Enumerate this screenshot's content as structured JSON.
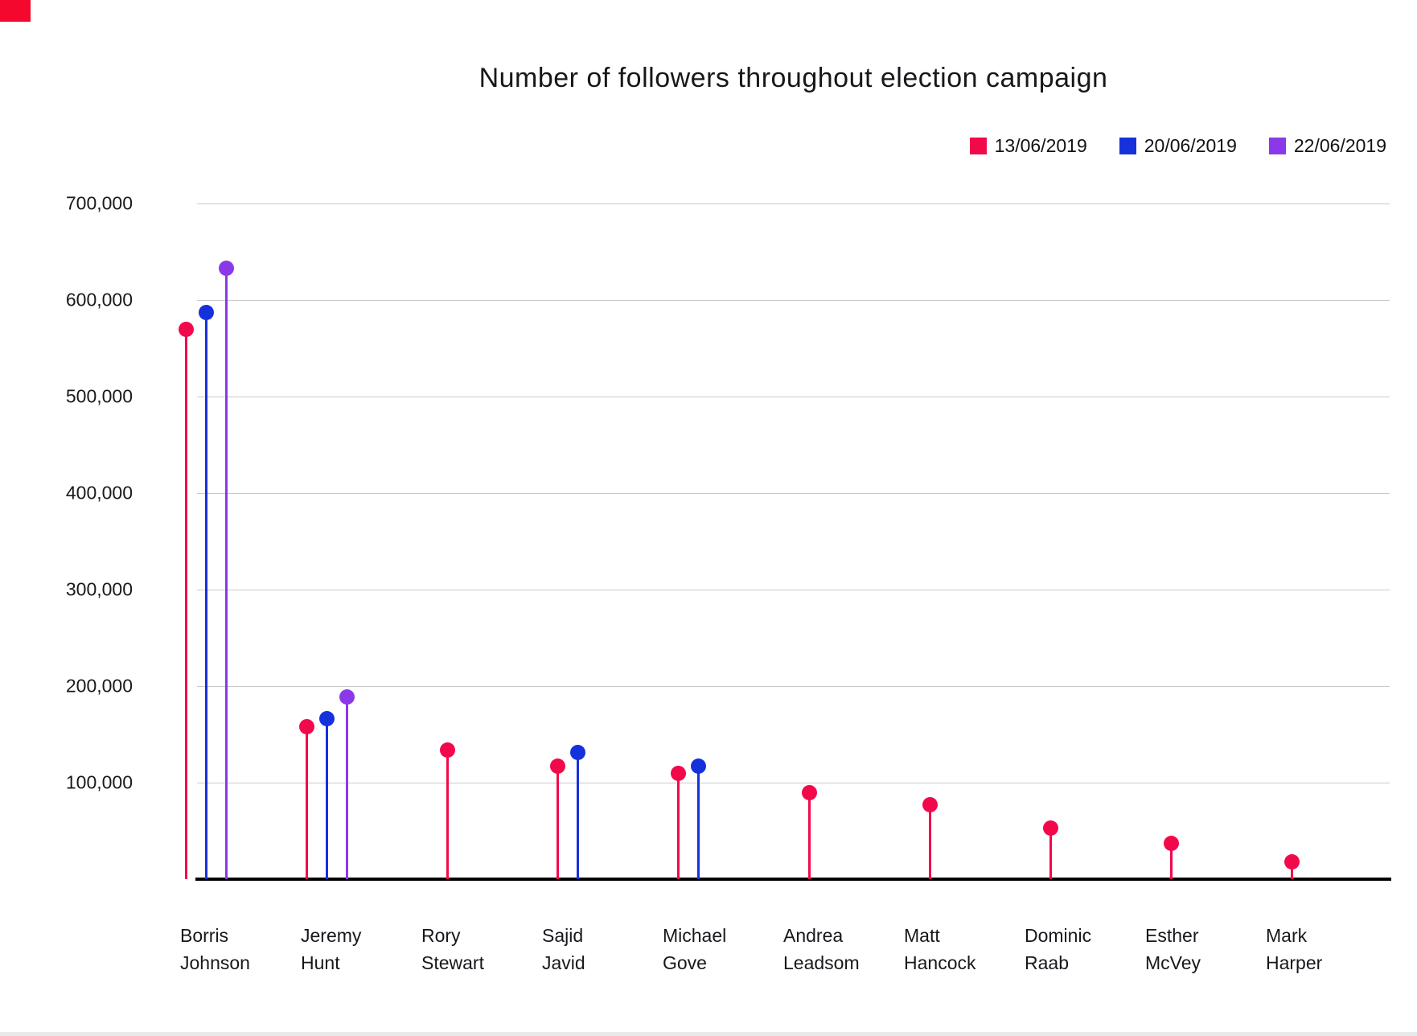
{
  "page": {
    "background": "#ffffff",
    "corner_fragment_color": "#f5082d"
  },
  "chart_data": {
    "type": "scatter",
    "variant": "lollipop-stem",
    "title": "Number of followers throughout election campaign",
    "categories": [
      "Borris Johnson",
      "Jeremy Hunt",
      "Rory Stewart",
      "Sajid Javid",
      "Michael Gove",
      "Andrea Leadsom",
      "Matt Hancock",
      "Dominic Raab",
      "Esther McVey",
      "Mark Harper"
    ],
    "category_lines": [
      [
        "Borris",
        "Johnson"
      ],
      [
        "Jeremy",
        "Hunt"
      ],
      [
        "Rory",
        "Stewart"
      ],
      [
        "Sajid",
        "Javid"
      ],
      [
        "Michael",
        "Gove"
      ],
      [
        "Andrea",
        "Leadsom"
      ],
      [
        "Matt",
        "Hancock"
      ],
      [
        "Dominic",
        "Raab"
      ],
      [
        "Esther",
        "McVey"
      ],
      [
        "Mark",
        "Harper"
      ]
    ],
    "series": [
      {
        "name": "13/06/2019",
        "color": "#f2094c",
        "values": [
          570000,
          158000,
          134000,
          117000,
          110000,
          90000,
          77000,
          53000,
          37000,
          18000
        ]
      },
      {
        "name": "20/06/2019",
        "color": "#1531dc",
        "values": [
          587000,
          166000,
          null,
          131000,
          117000,
          null,
          null,
          null,
          null,
          null
        ]
      },
      {
        "name": "22/06/2019",
        "color": "#8b39e8",
        "values": [
          633000,
          189000,
          null,
          null,
          null,
          null,
          null,
          null,
          null,
          null
        ]
      }
    ],
    "ylabel": "",
    "xlabel": "",
    "ylim": [
      0,
      700000
    ],
    "ytick_step": 100000,
    "ytick_labels": [
      "100,000",
      "200,000",
      "300,000",
      "400,000",
      "500,000",
      "600,000",
      "700,000"
    ],
    "grid": true,
    "gridline_color": "#c9c9c9",
    "axis_line_color": "#000000",
    "legend_position": "top-right"
  }
}
